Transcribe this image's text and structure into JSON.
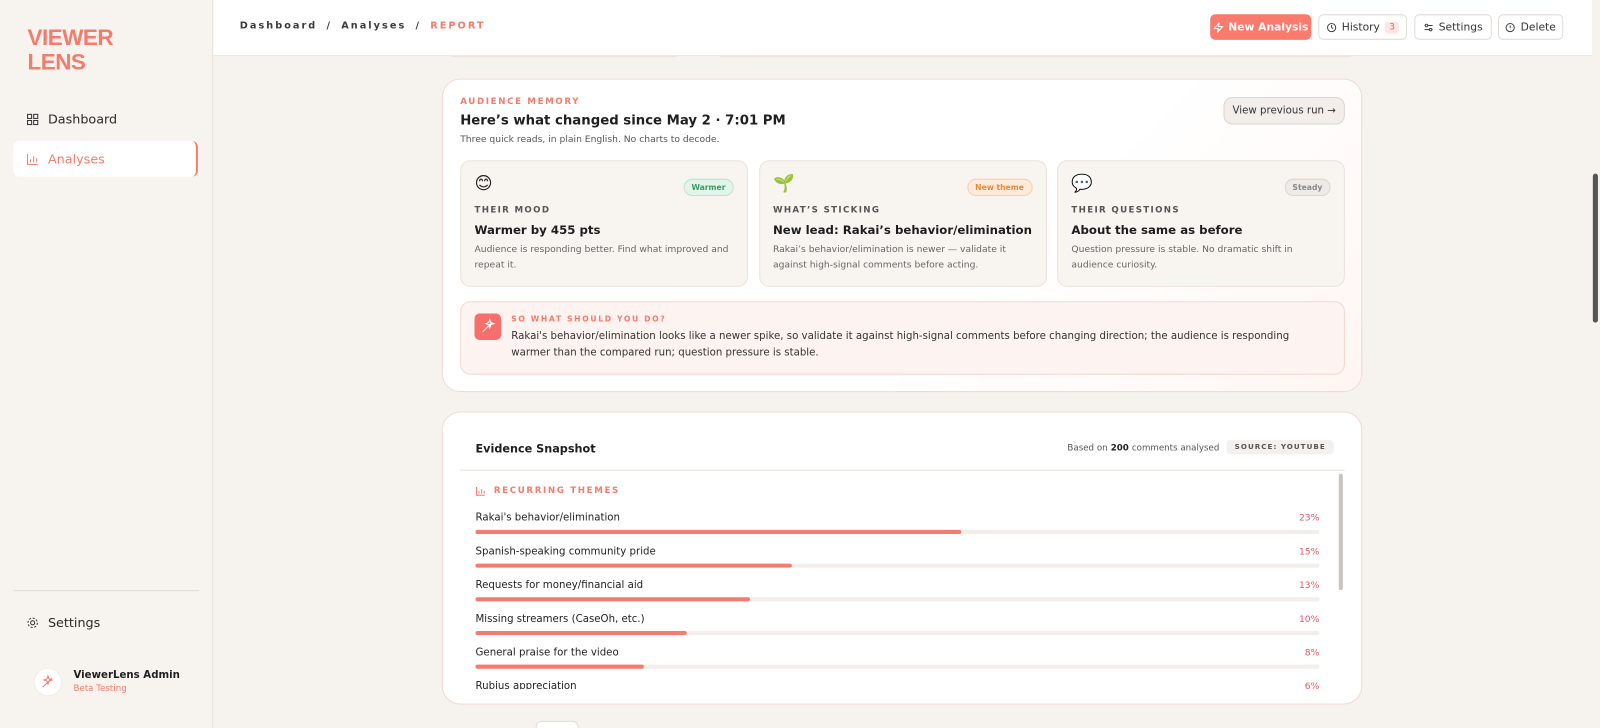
{
  "sidebar": {
    "logo": [
      "VIEWER",
      "LENS"
    ],
    "nav": [
      "Dashboard",
      "Analyses"
    ],
    "settings": "Settings",
    "user": {
      "name": "ViewerLens Admin",
      "role": "Beta Testing"
    }
  },
  "topbar": {
    "breadcrumb": [
      "Dashboard",
      "Analyses",
      "REPORT"
    ],
    "separator": "/",
    "buttons": {
      "new_analysis": "New Analysis",
      "history": "History",
      "history_count": "3",
      "settings": "Settings",
      "delete": "Delete"
    }
  },
  "audience_memory": {
    "label": "AUDIENCE MEMORY",
    "title": "Here’s what changed since May 2 · 7:01 PM",
    "subtitle": "Three quick reads, in plain English. No charts to decode.",
    "button": "View previous run →",
    "cards": [
      {
        "emoji": "😊",
        "badge": "Warmer",
        "label": "THEIR MOOD",
        "title": "Warmer by 455 pts",
        "text": "Audience is responding better. Find what improved and repeat it."
      },
      {
        "emoji": "🌱",
        "badge": "New theme",
        "label": "WHAT’S STICKING",
        "title": "New lead: Rakai’s behavior/elimination",
        "text": "Rakai’s behavior/elimination is newer — validate it against high-signal comments before acting."
      },
      {
        "emoji": "💬",
        "badge": "Steady",
        "label": "THEIR QUESTIONS",
        "title": "About the same as before",
        "text": "Question pressure is stable. No dramatic shift in audience curiosity."
      }
    ],
    "so_what": {
      "label": "SO WHAT SHOULD YOU DO?",
      "text": "Rakai's behavior/elimination looks like a newer spike, so validate it against high-signal comments before changing direction; the audience is responding warmer than the compared run; question pressure is stable."
    }
  },
  "evidence": {
    "title": "Evidence Snapshot",
    "based_on": [
      "Based on",
      "200",
      "comments analysed"
    ],
    "source": "SOURCE: YOUTUBE",
    "themes": {
      "title": "RECURRING THEMES",
      "xlim": [
        0,
        40
      ],
      "items": [
        {
          "name": "Rakai's behavior/elimination",
          "value": 23,
          "value_label": "23%"
        },
        {
          "name": "Spanish-speaking community pride",
          "value": 15,
          "value_label": "15%"
        },
        {
          "name": "Requests for money/financial aid",
          "value": 13,
          "value_label": "13%"
        },
        {
          "name": "Missing streamers (CaseOh, etc.)",
          "value": 10,
          "value_label": "10%"
        },
        {
          "name": "General praise for the video",
          "value": 8,
          "value_label": "8%"
        },
        {
          "name": "Rubius appreciation",
          "value": 6,
          "value_label": "6%"
        }
      ]
    }
  }
}
